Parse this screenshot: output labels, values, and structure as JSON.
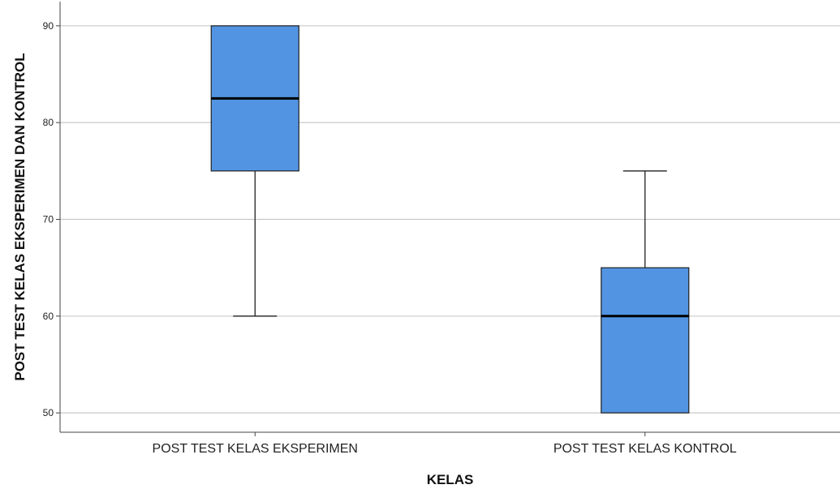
{
  "chart_data": {
    "type": "boxplot",
    "xlabel": "KELAS",
    "ylabel": "POST TEST KELAS EKSPERIMEN DAN KONTROL",
    "ylim": [
      48,
      92.5
    ],
    "yticks": [
      50,
      60,
      70,
      80,
      90
    ],
    "grid": true,
    "categories": [
      "POST TEST KELAS EKSPERIMEN",
      "POST TEST KELAS KONTROL"
    ],
    "boxes": [
      {
        "category": "POST TEST KELAS EKSPERIMEN",
        "min": 60,
        "q1": 75,
        "median": 82.5,
        "q3": 90,
        "max": 90
      },
      {
        "category": "POST TEST KELAS KONTROL",
        "min": 50,
        "q1": 50,
        "median": 60,
        "q3": 65,
        "max": 75
      }
    ],
    "colors": {
      "box_fill": "#5294E2",
      "box_stroke": "#222222",
      "grid": "#c8c8c8",
      "axis": "#444444"
    }
  }
}
